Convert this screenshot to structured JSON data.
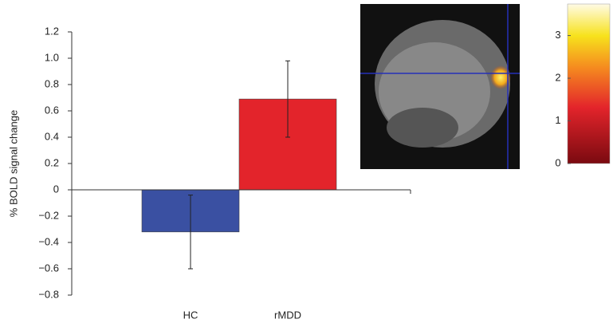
{
  "chart_data": {
    "type": "bar",
    "ylabel": "% BOLD signal change",
    "categories": [
      "HC",
      "rMDD"
    ],
    "values": [
      -0.32,
      0.69
    ],
    "errors": [
      0.28,
      0.29
    ],
    "colors": [
      "#3a50a2",
      "#e3242b"
    ],
    "ylim": [
      -0.8,
      1.2
    ],
    "yticks": [
      {
        "value": -0.8,
        "label": "−0.8"
      },
      {
        "value": -0.6,
        "label": "−0.6"
      },
      {
        "value": -0.4,
        "label": "−0.4"
      },
      {
        "value": -0.2,
        "label": "−0.2"
      },
      0,
      0.2,
      0.4,
      0.6,
      0.8,
      {
        "value": 1,
        "label": "1.0"
      },
      1.2
    ],
    "colorbar": {
      "lim": [
        0,
        3.74
      ],
      "ticks": [
        0,
        1,
        2,
        3
      ]
    }
  }
}
